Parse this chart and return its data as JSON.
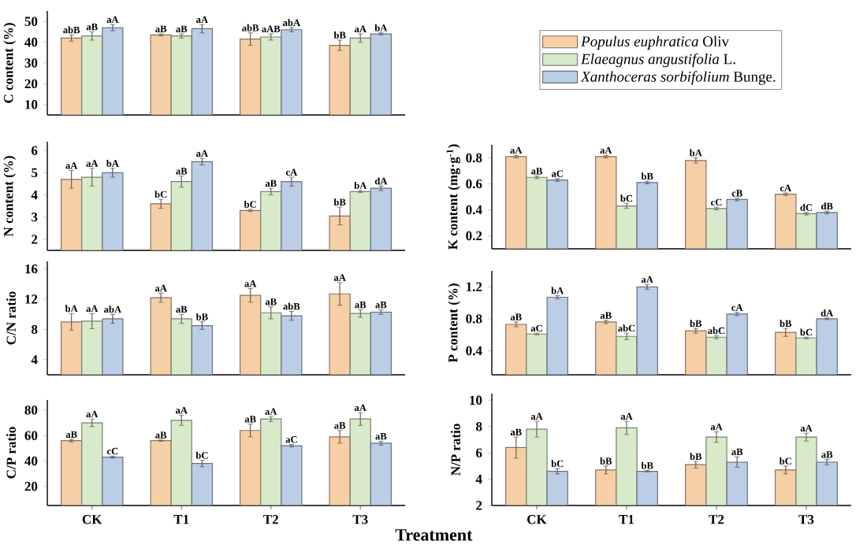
{
  "chart_data": [
    {
      "type": "bar",
      "ylabel": "C content (%)",
      "categories": [
        null,
        null,
        null,
        null
      ],
      "ylim": [
        5,
        55
      ],
      "yticks": [
        10,
        20,
        30,
        40,
        50
      ],
      "tick_labels": "y",
      "series": [
        {
          "color": "#f6cfa7",
          "values": [
            42,
            43.5,
            41.5,
            38.5
          ],
          "errors": [
            1.5,
            0.5,
            3,
            2.5
          ],
          "value_labels": [
            "abB",
            "aB",
            "abB",
            "bB"
          ]
        },
        {
          "color": "#d9eacb",
          "values": [
            43,
            43,
            42.5,
            42
          ],
          "errors": [
            2,
            1,
            1.5,
            2
          ],
          "value_labels": [
            "aB",
            "aB",
            "aAB",
            "aA"
          ]
        },
        {
          "color": "#bccde6",
          "values": [
            47,
            46.5,
            46,
            44
          ],
          "errors": [
            1.5,
            2,
            1,
            0.5
          ],
          "value_labels": [
            "aA",
            "aA",
            "abA",
            "bA"
          ]
        }
      ]
    },
    {
      "type": "bar",
      "ylabel": "N content (%)",
      "categories": [
        null,
        null,
        null,
        null
      ],
      "ylim": [
        1.5,
        6.4
      ],
      "yticks": [
        2,
        3,
        4,
        5,
        6
      ],
      "tick_labels": "y",
      "series": [
        {
          "color": "#f6cfa7",
          "values": [
            4.7,
            3.6,
            3.3,
            3.05
          ],
          "errors": [
            0.4,
            0.2,
            0.05,
            0.4
          ],
          "value_labels": [
            "aA",
            "bC",
            "bC",
            "bB"
          ]
        },
        {
          "color": "#d9eacb",
          "values": [
            4.8,
            4.6,
            4.15,
            4.15
          ],
          "errors": [
            0.4,
            0.25,
            0.15,
            0.05
          ],
          "value_labels": [
            "aA",
            "aB",
            "aB",
            "bA"
          ]
        },
        {
          "color": "#bccde6",
          "values": [
            5.0,
            5.5,
            4.6,
            4.3
          ],
          "errors": [
            0.2,
            0.15,
            0.2,
            0.1
          ],
          "value_labels": [
            "bA",
            "aA",
            "cA",
            "dA"
          ]
        }
      ]
    },
    {
      "type": "bar",
      "ylabel": "K content (mg·g$^{-1}$)",
      "categories": [
        null,
        null,
        null,
        null
      ],
      "ylim": [
        0.1,
        0.9
      ],
      "yticks": [
        0.2,
        0.4,
        0.6,
        0.8
      ],
      "tick_labels": "y",
      "legend": "top",
      "series": [
        {
          "name": "*Populus euphratica* Oliv",
          "color": "#f6cfa7",
          "values": [
            0.81,
            0.81,
            0.78,
            0.52
          ],
          "errors": [
            0.01,
            0.01,
            0.02,
            0.01
          ],
          "value_labels": [
            "aA",
            "aA",
            "bA",
            "cA"
          ]
        },
        {
          "name": "*Elaeagnus angustifolia* L.",
          "color": "#d9eacb",
          "values": [
            0.65,
            0.43,
            0.41,
            0.37
          ],
          "errors": [
            0.01,
            0.02,
            0.01,
            0.01
          ],
          "value_labels": [
            "aB",
            "bC",
            "cC",
            "dC"
          ]
        },
        {
          "name": "*Xanthoceras sorbifolium* Bunge.",
          "color": "#bccde6",
          "values": [
            0.63,
            0.61,
            0.48,
            0.38
          ],
          "errors": [
            0.01,
            0.01,
            0.01,
            0.01
          ],
          "value_labels": [
            "aC",
            "bB",
            "cB",
            "dB"
          ]
        }
      ]
    },
    {
      "type": "bar",
      "ylabel": "C/N ratio",
      "categories": [
        null,
        null,
        null,
        null
      ],
      "ylim": [
        2,
        17
      ],
      "yticks": [
        4,
        8,
        12,
        16
      ],
      "tick_labels": "y",
      "series": [
        {
          "color": "#f6cfa7",
          "values": [
            9.0,
            12.2,
            12.5,
            12.7
          ],
          "errors": [
            1.1,
            0.6,
            0.9,
            1.5
          ],
          "value_labels": [
            "bA",
            "aA",
            "aA",
            "aA"
          ]
        },
        {
          "color": "#d9eacb",
          "values": [
            9.1,
            9.4,
            10.2,
            10.1
          ],
          "errors": [
            1.0,
            0.6,
            0.8,
            0.5
          ],
          "value_labels": [
            "aA",
            "aB",
            "aB",
            "aB"
          ]
        },
        {
          "color": "#bccde6",
          "values": [
            9.4,
            8.5,
            9.8,
            10.3
          ],
          "errors": [
            0.6,
            0.5,
            0.6,
            0.3
          ],
          "value_labels": [
            "abA",
            "bB",
            "abB",
            "aB"
          ]
        }
      ]
    },
    {
      "type": "bar",
      "ylabel": "P content (%)",
      "categories": [
        null,
        null,
        null,
        null
      ],
      "ylim": [
        0.1,
        1.4
      ],
      "yticks": [
        0.4,
        0.8,
        1.2
      ],
      "tick_labels": "y",
      "series": [
        {
          "color": "#f6cfa7",
          "values": [
            0.73,
            0.76,
            0.65,
            0.63
          ],
          "errors": [
            0.03,
            0.02,
            0.03,
            0.05
          ],
          "value_labels": [
            "aB",
            "aB",
            "bB",
            "bB"
          ]
        },
        {
          "color": "#d9eacb",
          "values": [
            0.61,
            0.58,
            0.57,
            0.56
          ],
          "errors": [
            0.01,
            0.04,
            0.02,
            0.01
          ],
          "value_labels": [
            "aC",
            "abC",
            "abC",
            "bC"
          ]
        },
        {
          "color": "#bccde6",
          "values": [
            1.07,
            1.2,
            0.86,
            0.8
          ],
          "errors": [
            0.02,
            0.03,
            0.02,
            0.01
          ],
          "value_labels": [
            "bA",
            "aA",
            "cA",
            "dA"
          ]
        }
      ]
    },
    {
      "type": "bar",
      "ylabel": "C/P ratio",
      "xlabel": "Treatment",
      "categories": [
        "CK",
        "T1",
        "T2",
        "T3"
      ],
      "ylim": [
        5,
        88
      ],
      "yticks": [
        20,
        40,
        60,
        80
      ],
      "series": [
        {
          "color": "#f6cfa7",
          "values": [
            56,
            56,
            64,
            59
          ],
          "errors": [
            1,
            0.5,
            5,
            5
          ],
          "value_labels": [
            "aB",
            "aB",
            "aB",
            "aB"
          ]
        },
        {
          "color": "#d9eacb",
          "values": [
            70,
            72,
            73,
            73
          ],
          "errors": [
            3,
            4,
            2,
            5
          ],
          "value_labels": [
            "aA",
            "aA",
            "aA",
            "aA"
          ]
        },
        {
          "color": "#bccde6",
          "values": [
            43,
            38,
            52,
            54
          ],
          "errors": [
            0.8,
            2.5,
            1,
            1.5
          ],
          "value_labels": [
            "cC",
            "bC",
            "aC",
            "aB"
          ]
        }
      ]
    },
    {
      "type": "bar",
      "ylabel": "N/P ratio",
      "categories": [
        "CK",
        "T1",
        "T2",
        "T3"
      ],
      "ylim": [
        2,
        10.5
      ],
      "yticks": [
        2,
        4,
        6,
        8,
        10
      ],
      "series": [
        {
          "color": "#f6cfa7",
          "values": [
            6.4,
            4.7,
            5.1,
            4.7
          ],
          "errors": [
            0.8,
            0.3,
            0.25,
            0.3
          ],
          "value_labels": [
            "aB",
            "bB",
            "bB",
            "bC"
          ]
        },
        {
          "color": "#d9eacb",
          "values": [
            7.8,
            7.9,
            7.2,
            7.2
          ],
          "errors": [
            0.6,
            0.5,
            0.4,
            0.3
          ],
          "value_labels": [
            "aA",
            "aA",
            "aA",
            "aA"
          ]
        },
        {
          "color": "#bccde6",
          "values": [
            4.6,
            4.6,
            5.3,
            5.3
          ],
          "errors": [
            0.2,
            0.05,
            0.4,
            0.2
          ],
          "value_labels": [
            "bC",
            "bB",
            "aB",
            "aB"
          ]
        }
      ]
    }
  ]
}
